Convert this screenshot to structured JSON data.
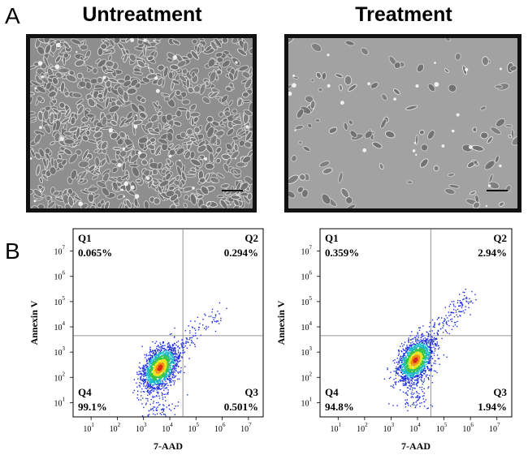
{
  "panel_labels": {
    "a": "A",
    "b": "B"
  },
  "panel_a": {
    "left_title": "Untreatment",
    "right_title": "Treatment"
  },
  "chart_data": [
    {
      "type": "scatter",
      "title": "",
      "xlabel": "7-AAD",
      "ylabel": "Annexin V",
      "x_scale": "log",
      "y_scale": "log",
      "xlim_exp": [
        0.5,
        7.5
      ],
      "ylim_exp": [
        0.5,
        7.5
      ],
      "x_tick_exponents": [
        1,
        2,
        3,
        4,
        5,
        6,
        7
      ],
      "y_tick_exponents": [
        1,
        2,
        3,
        4,
        5,
        6,
        7
      ],
      "gate_x_exp": 4.5,
      "gate_y_exp": 3.65,
      "quadrants": [
        {
          "name": "Q1",
          "percent": "0.065%"
        },
        {
          "name": "Q2",
          "percent": "0.294%"
        },
        {
          "name": "Q3",
          "percent": "0.501%"
        },
        {
          "name": "Q4",
          "percent": "99.1%"
        }
      ],
      "population": {
        "center_x_exp": 3.6,
        "center_y_exp": 2.4
      }
    },
    {
      "type": "scatter",
      "title": "",
      "xlabel": "7-AAD",
      "ylabel": "Annexin V",
      "x_scale": "log",
      "y_scale": "log",
      "xlim_exp": [
        0.5,
        7.5
      ],
      "ylim_exp": [
        0.5,
        7.5
      ],
      "x_tick_exponents": [
        1,
        2,
        3,
        4,
        5,
        6,
        7
      ],
      "y_tick_exponents": [
        1,
        2,
        3,
        4,
        5,
        6,
        7
      ],
      "gate_x_exp": 4.5,
      "gate_y_exp": 3.65,
      "quadrants": [
        {
          "name": "Q1",
          "percent": "0.359%"
        },
        {
          "name": "Q2",
          "percent": "2.94%"
        },
        {
          "name": "Q3",
          "percent": "1.94%"
        },
        {
          "name": "Q4",
          "percent": "94.8%"
        }
      ],
      "population": {
        "center_x_exp": 3.9,
        "center_y_exp": 2.7
      }
    }
  ]
}
